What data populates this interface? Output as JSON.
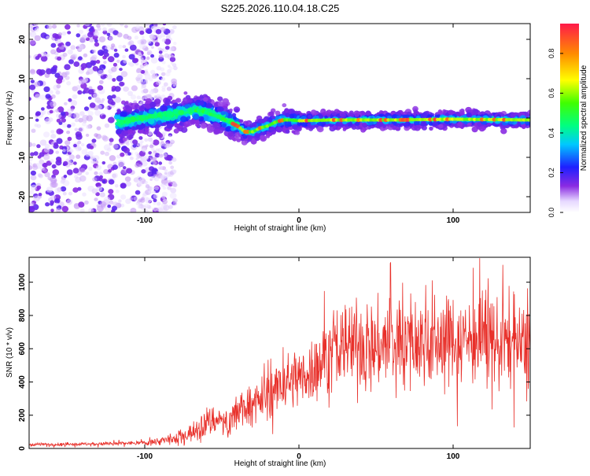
{
  "title": "S225.2026.110.04.18.C25",
  "chart_data": [
    {
      "type": "scatter",
      "subtype": "spectrogram",
      "xlabel": "Height of straight line (km)",
      "ylabel": "Frequency (Hz)",
      "xlim": [
        -175,
        150
      ],
      "ylim": [
        -24,
        24
      ],
      "x_ticks": [
        -100,
        0,
        100
      ],
      "y_ticks": [
        -20,
        -10,
        0,
        10,
        20
      ],
      "colorbar": {
        "label": "Normalized spectral amplitude",
        "range": [
          0,
          0.95
        ],
        "ticks": [
          "0.0",
          "0.2",
          "0.4",
          "0.6",
          "0.8"
        ],
        "colormap": "rainbow (white-violet to red)"
      },
      "ridge": {
        "x": [
          -115,
          -100,
          -80,
          -65,
          -50,
          -40,
          -35,
          -30,
          -25,
          -20,
          -15,
          -10,
          -5,
          0,
          20,
          60,
          100,
          150
        ],
        "y": [
          -1,
          0,
          1,
          2,
          0,
          -2,
          -3.5,
          -3.5,
          -2.5,
          -2,
          -1,
          -0.5,
          -0.5,
          -0.7,
          -0.5,
          -0.5,
          -0.3,
          -0.5
        ]
      }
    },
    {
      "type": "line",
      "xlabel": "Height of straight line (km)",
      "ylabel": "SNR (10 * v/v)",
      "xlim": [
        -175,
        150
      ],
      "ylim": [
        0,
        1150
      ],
      "x_ticks": [
        -100,
        0,
        100
      ],
      "y_ticks": [
        0,
        200,
        400,
        600,
        800,
        1000
      ],
      "series": [
        {
          "color": "#e8302a",
          "x": [
            -175,
            -150,
            -125,
            -100,
            -90,
            -80,
            -70,
            -60,
            -50,
            -45,
            -40,
            -30,
            -20,
            -10,
            0,
            10,
            20,
            30,
            40,
            50,
            60,
            70,
            80,
            90,
            100,
            110,
            120,
            130,
            140,
            150
          ],
          "y": [
            25,
            25,
            28,
            35,
            45,
            60,
            95,
            160,
            180,
            120,
            240,
            270,
            320,
            390,
            430,
            480,
            570,
            620,
            630,
            610,
            640,
            650,
            630,
            640,
            660,
            660,
            650,
            640,
            620,
            610
          ]
        }
      ]
    }
  ],
  "colors": {
    "line": "#e8302a",
    "axes": "#000000"
  }
}
